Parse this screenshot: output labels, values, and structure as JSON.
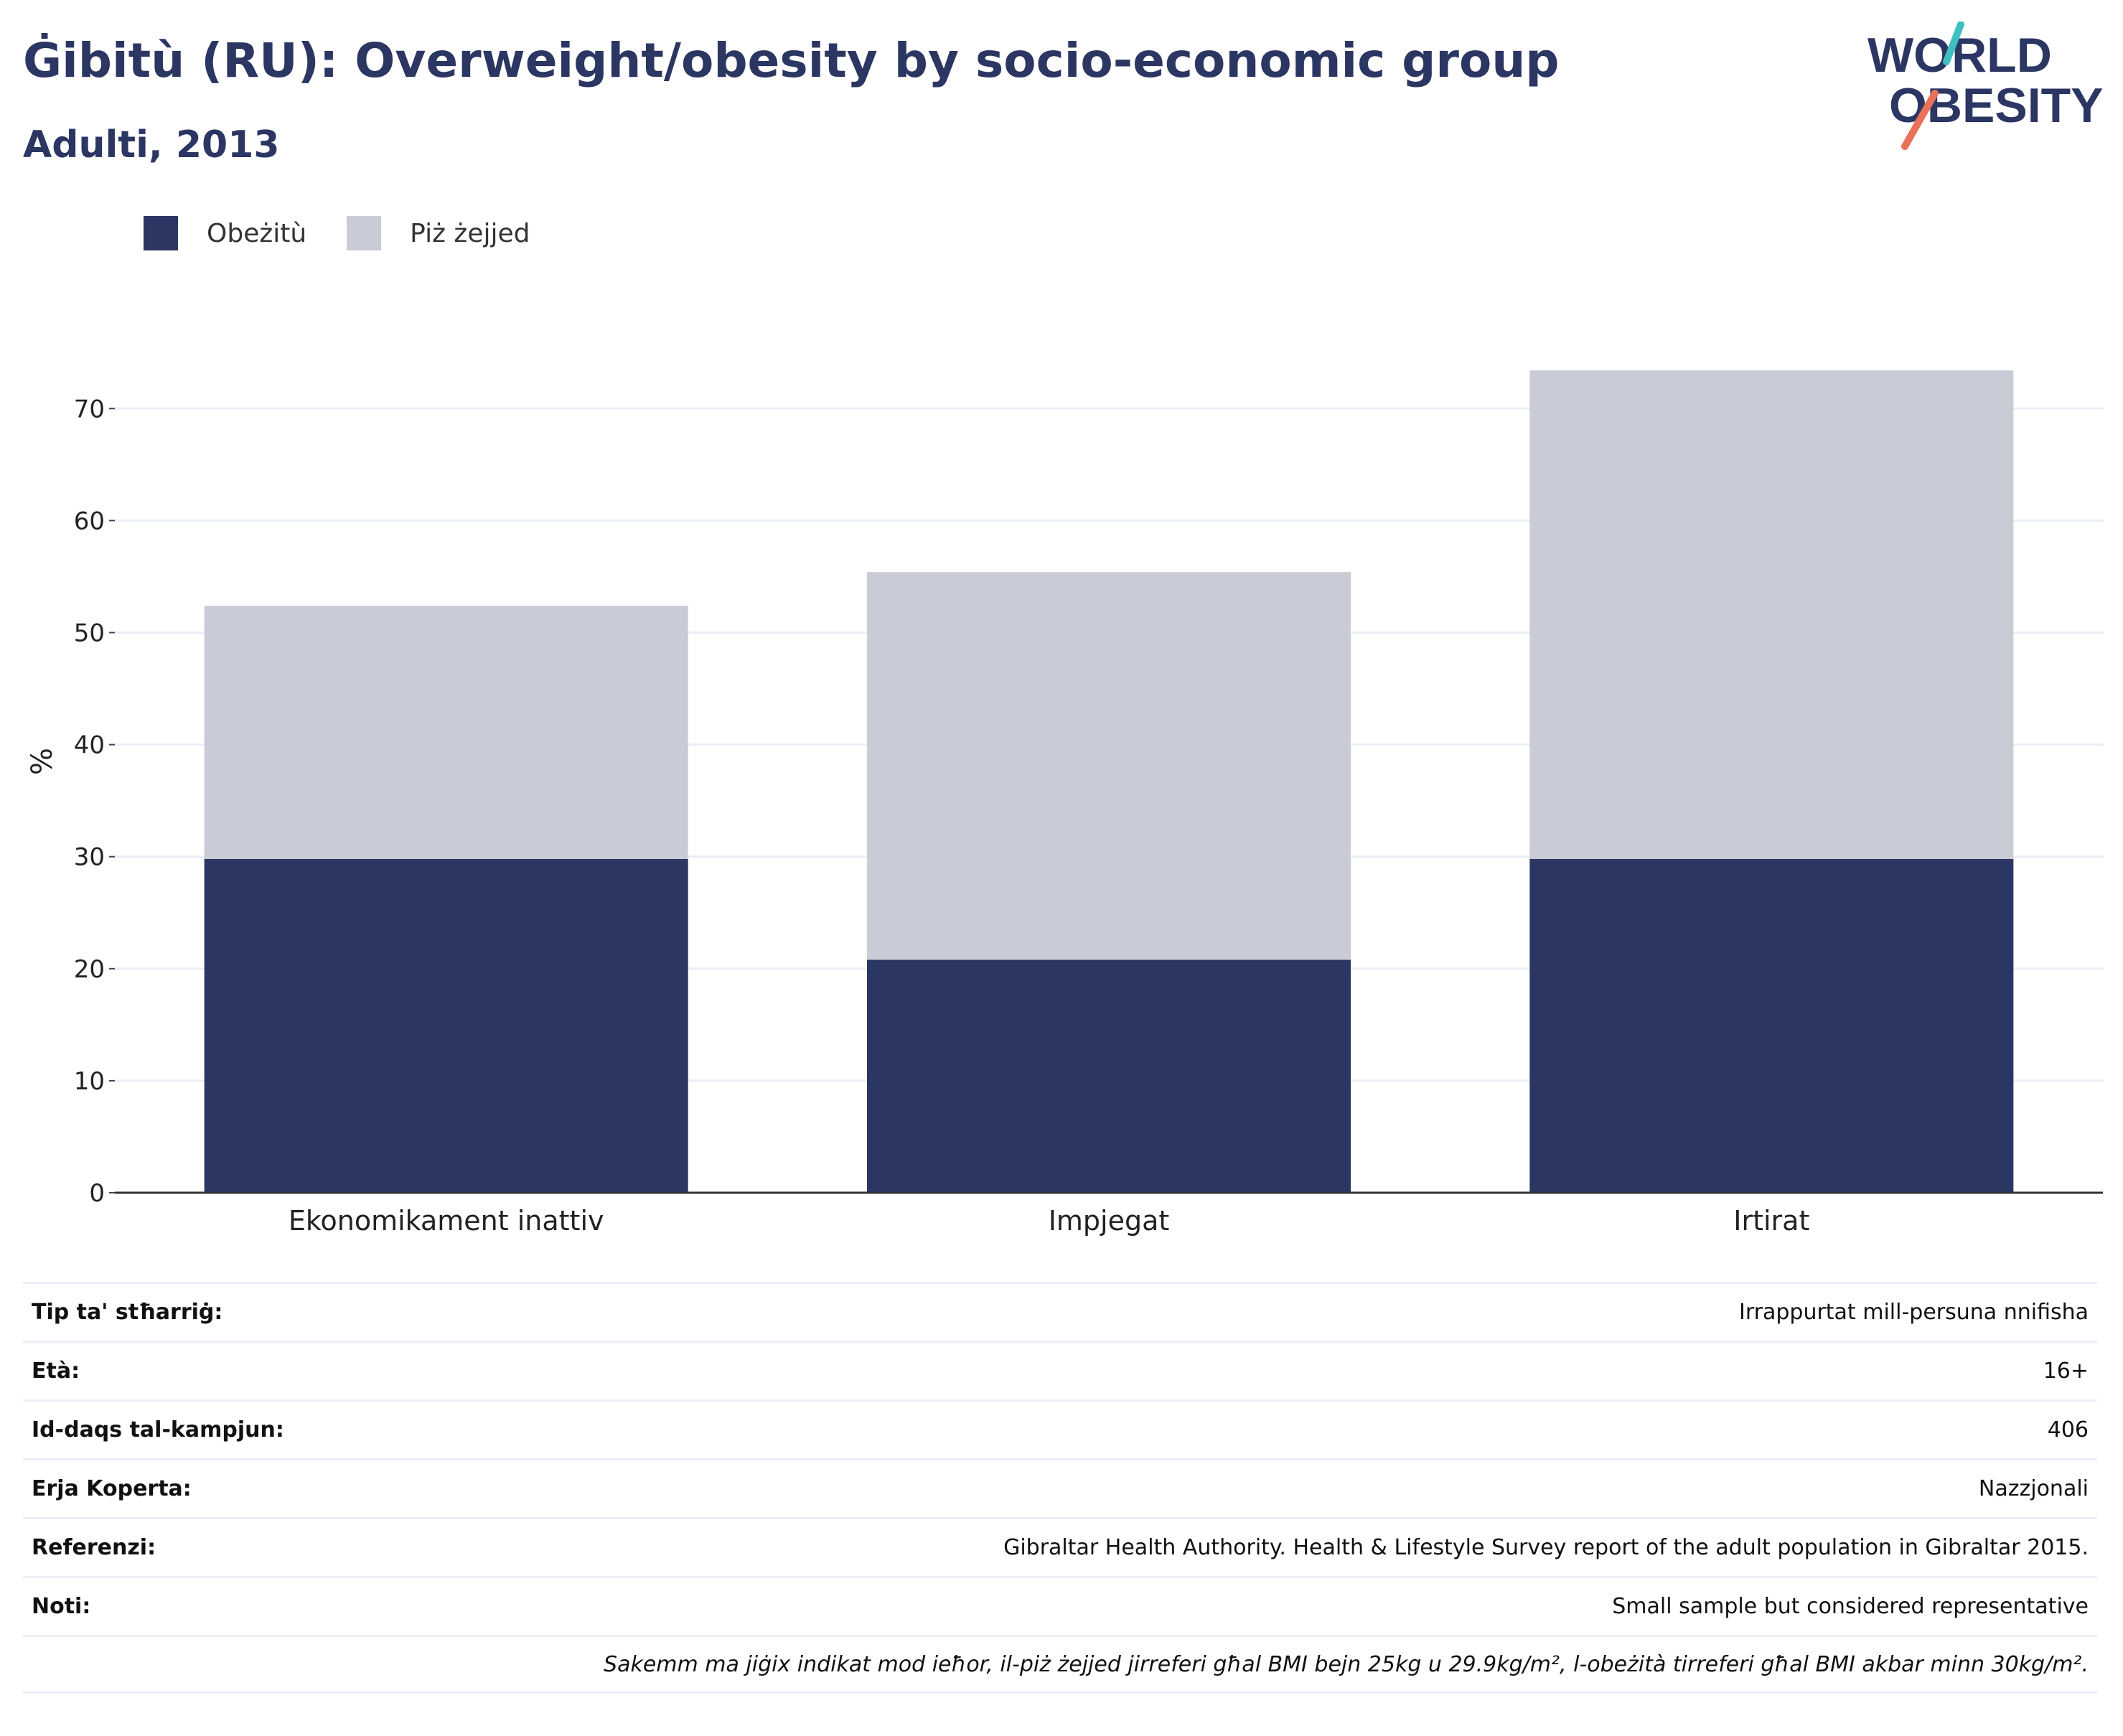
{
  "header": {
    "title": "Ġibitù (RU): Overweight/obesity by socio-economic group",
    "subtitle": "Adulti, 2013"
  },
  "logo": {
    "line1": "WORLD",
    "line2": "OBESITY"
  },
  "colors": {
    "obesity": "#2b3663",
    "overweight": "#c9ccd7",
    "brand_text": "#2b3663",
    "logo_teal": "#3fbfbf",
    "logo_coral": "#e8735a",
    "grid": "#ebeef7"
  },
  "chart_data": {
    "type": "bar",
    "stacked": true,
    "categories": [
      "Ekonomikament inattiv",
      "Impjegat",
      "Irtirat"
    ],
    "series": [
      {
        "name": "Obeżitù",
        "values": [
          29.8,
          20.8,
          29.8
        ]
      },
      {
        "name": "Piż żejjed",
        "values": [
          22.6,
          34.6,
          43.6
        ]
      }
    ],
    "ylabel": "%",
    "ylim": [
      0,
      77
    ],
    "yticks": [
      0,
      10,
      20,
      30,
      40,
      50,
      60,
      70
    ],
    "grid": true,
    "legend_position": "top-left"
  },
  "info": [
    {
      "label": "Tip ta' stħarriġ:",
      "value": "Irrappurtat mill-persuna nnifisha"
    },
    {
      "label": "Età:",
      "value": "16+"
    },
    {
      "label": "Id-daqs tal-kampjun:",
      "value": "406"
    },
    {
      "label": "Erja Koperta:",
      "value": "Nazzjonali"
    },
    {
      "label": "Referenzi:",
      "value": "Gibraltar Health Authority. Health & Lifestyle Survey report of the adult population in Gibraltar 2015."
    },
    {
      "label": "Noti:",
      "value": "Small sample but considered representative"
    }
  ],
  "footnote": "Sakemm ma jiġix indikat mod ieħor, il-piż żejjed jirreferi għal BMI bejn 25kg u 29.9kg/m², l-obeżità tirreferi għal BMI akbar minn 30kg/m²."
}
